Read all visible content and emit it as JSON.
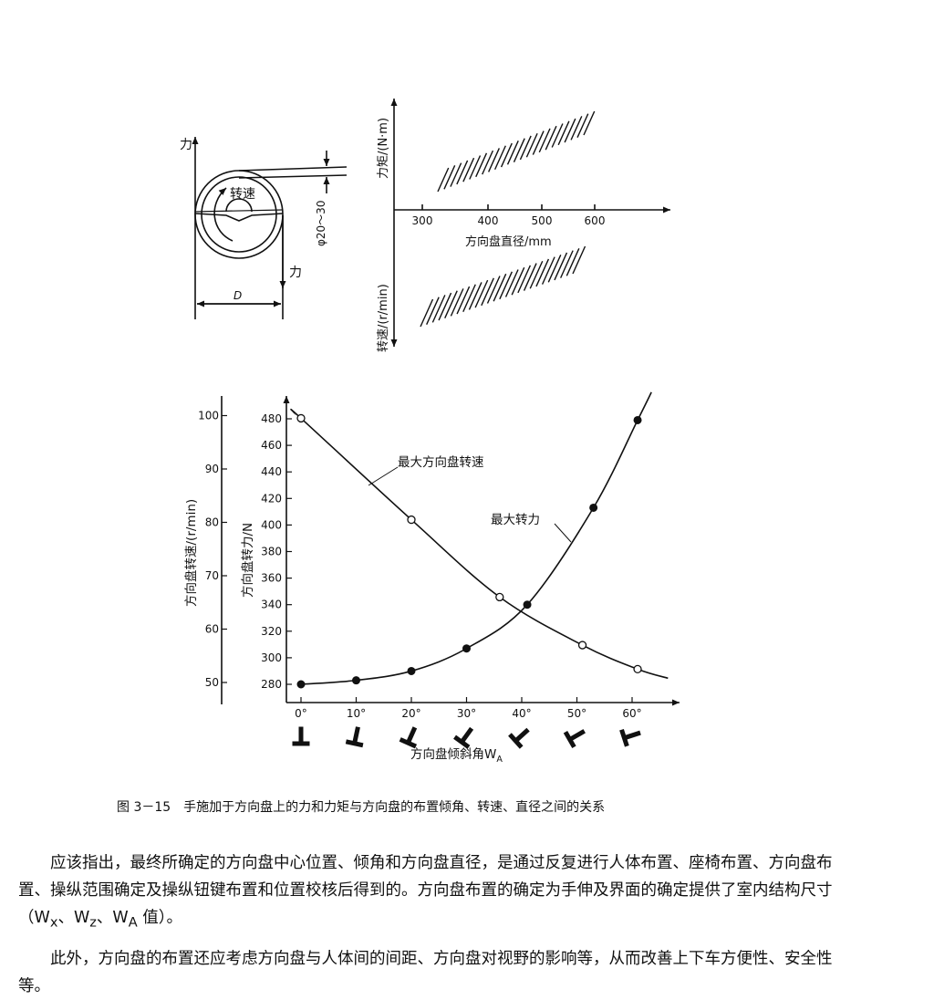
{
  "diagram_wheel": {
    "force_label_top": "力",
    "force_label_bottom": "力",
    "speed_label": "转速",
    "grip_label": "φ20～30",
    "diameter_label": "D"
  },
  "diagram_torque": {
    "torque_axis_label": "力矩/(N·m)",
    "speed_axis_label": "转速/(r/min)",
    "diameter_axis_label": "方向盘直径/mm",
    "x_ticks": [
      "300",
      "400",
      "500",
      "600"
    ]
  },
  "chart_data": {
    "type": "line",
    "x_ticks": [
      "0°",
      "10°",
      "20°",
      "30°",
      "40°",
      "50°",
      "60°"
    ],
    "xlabel_main": "方向盘倾斜角W",
    "xlabel_sub": "A",
    "ylabel_left": "方向盘转速/(r/min)",
    "ylabel_right": "方向盘转力/N",
    "yticks_left": [
      "100",
      "90",
      "80",
      "70",
      "60",
      "50"
    ],
    "yticks_right": [
      "480",
      "460",
      "440",
      "420",
      "400",
      "380",
      "360",
      "340",
      "320",
      "300",
      "280"
    ],
    "ylim_force": [
      280,
      480
    ],
    "ylim_speed": [
      50,
      100
    ],
    "series": [
      {
        "name": "最大方向盘转速",
        "axis": "left",
        "marker": "open-circle",
        "x": [
          0,
          20,
          36,
          51,
          61
        ],
        "y": [
          99.5,
          80.5,
          66,
          57,
          52.5
        ]
      },
      {
        "name": "最大转力",
        "axis": "right",
        "marker": "filled-circle",
        "x": [
          0,
          10,
          20,
          30,
          41,
          53,
          61
        ],
        "y": [
          280,
          283,
          290,
          307,
          340,
          413,
          479
        ]
      }
    ]
  },
  "caption": {
    "number": "图 3－15",
    "text": "手施加于方向盘上的力和力矩与方向盘的布置倾角、转速、直径之间的关系"
  },
  "body": {
    "paragraph1": "应该指出，最终所确定的方向盘中心位置、倾角和方向盘直径，是通过反复进行人体布置、座椅布置、方向盘布置、操纵范围确定及操纵钮键布置和位置校核后得到的。方向盘布置的确定为手伸及界面的确定提供了室内结构尺寸（W",
    "p1_sub1": "x",
    "p1_sep1": "、W",
    "p1_sub2": "z",
    "p1_sep2": "、W",
    "p1_sub3": "A",
    "p1_end": " 值）。",
    "paragraph2": "此外，方向盘的布置还应考虑方向盘与人体间的间距、方向盘对视野的影响等，从而改善上下车方便性、安全性等。"
  }
}
